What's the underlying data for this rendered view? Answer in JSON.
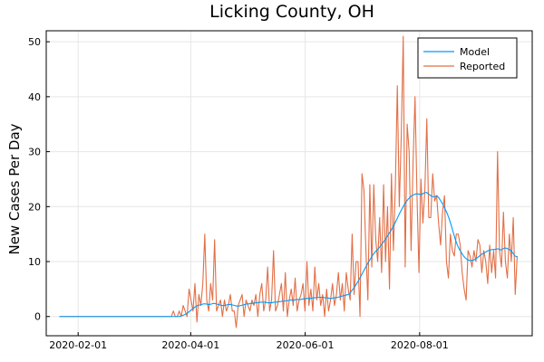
{
  "chart_data": {
    "type": "line",
    "title": "Licking County, OH",
    "xlabel": "",
    "ylabel": "New Cases Per Day",
    "xlim": [
      "2020-01-15",
      "2020-09-30"
    ],
    "ylim": [
      -3.5,
      52
    ],
    "x_ticks": [
      "2020-02-01",
      "2020-04-01",
      "2020-06-01",
      "2020-08-01"
    ],
    "y_ticks": [
      0,
      10,
      20,
      30,
      40,
      50
    ],
    "grid": true,
    "legend": "top-right",
    "x_start": "2020-01-22",
    "x_end": "2020-09-22",
    "colors": {
      "Model": "#009af9",
      "Reported": "#e26f46"
    },
    "series": [
      {
        "name": "Model",
        "values": [
          0,
          0,
          0,
          0,
          0,
          0,
          0,
          0,
          0,
          0,
          0,
          0,
          0,
          0,
          0,
          0,
          0,
          0,
          0,
          0,
          0,
          0,
          0,
          0,
          0,
          0,
          0,
          0,
          0,
          0,
          0,
          0,
          0,
          0,
          0,
          0,
          0,
          0,
          0,
          0,
          0,
          0,
          0,
          0,
          0,
          0,
          0,
          0,
          0,
          0,
          0,
          0,
          0,
          0,
          0,
          0,
          0,
          0,
          0,
          0.1,
          0.2,
          0.4,
          0.6,
          0.9,
          1.2,
          1.5,
          1.8,
          2.0,
          2.1,
          2.2,
          2.3,
          2.3,
          2.2,
          2.2,
          2.3,
          2.4,
          2.3,
          2.2,
          2.1,
          2.0,
          2.0,
          2.1,
          2.2,
          2.2,
          2.1,
          2.0,
          1.9,
          1.9,
          2.0,
          2.1,
          2.2,
          2.3,
          2.3,
          2.4,
          2.4,
          2.5,
          2.5,
          2.6,
          2.6,
          2.6,
          2.6,
          2.5,
          2.5,
          2.5,
          2.6,
          2.6,
          2.7,
          2.7,
          2.8,
          2.8,
          2.9,
          2.9,
          3.0,
          3.0,
          3.0,
          3.1,
          3.1,
          3.1,
          3.2,
          3.2,
          3.3,
          3.3,
          3.3,
          3.4,
          3.4,
          3.5,
          3.5,
          3.5,
          3.5,
          3.4,
          3.4,
          3.3,
          3.3,
          3.4,
          3.4,
          3.5,
          3.6,
          3.7,
          3.8,
          3.9,
          4.0,
          4.3,
          4.8,
          5.3,
          5.9,
          6.5,
          7.2,
          7.9,
          8.6,
          9.3,
          10.0,
          10.6,
          11.2,
          11.7,
          12.1,
          12.5,
          13.0,
          13.5,
          14.0,
          14.6,
          15.2,
          15.8,
          16.5,
          17.2,
          18.0,
          18.8,
          19.5,
          20.2,
          20.8,
          21.3,
          21.7,
          22.0,
          22.2,
          22.3,
          22.3,
          22.2,
          22.3,
          22.5,
          22.6,
          22.3,
          22.0,
          21.8,
          21.8,
          22.0,
          21.6,
          21.0,
          20.4,
          19.6,
          18.8,
          17.8,
          16.6,
          15.3,
          14.0,
          13.0,
          12.2,
          11.6,
          11.0,
          10.6,
          10.3,
          10.2,
          10.2,
          10.3,
          10.5,
          10.8,
          11.1,
          11.4,
          11.6,
          11.8,
          12.0,
          12.1,
          12.2,
          12.2,
          12.3,
          12.3,
          12.1,
          12.3,
          12.5,
          12.4,
          12.2,
          12.0,
          11.5,
          11.0,
          10.8
        ]
      },
      {
        "name": "Reported",
        "values": [
          0,
          0,
          0,
          0,
          0,
          0,
          0,
          0,
          0,
          0,
          0,
          0,
          0,
          0,
          0,
          0,
          0,
          0,
          0,
          0,
          0,
          0,
          0,
          0,
          0,
          0,
          0,
          0,
          0,
          0,
          0,
          0,
          0,
          0,
          0,
          0,
          0,
          0,
          0,
          0,
          0,
          0,
          0,
          0,
          0,
          0,
          0,
          0,
          0,
          0,
          0,
          0,
          0,
          0,
          0,
          0,
          0,
          0,
          1,
          0,
          0,
          1,
          0,
          2,
          1,
          0,
          5,
          3,
          1,
          6,
          -1,
          4,
          2,
          6,
          15,
          3,
          1,
          6,
          3,
          14,
          1,
          2,
          3,
          0,
          3,
          1,
          2,
          4,
          1,
          1,
          -2,
          2,
          3,
          4,
          0,
          3,
          2,
          1,
          3,
          2,
          4,
          0,
          4,
          6,
          1,
          3,
          9,
          1,
          3,
          12,
          1,
          2,
          4,
          6,
          1,
          8,
          0,
          3,
          5,
          2,
          7,
          1,
          3,
          4,
          6,
          1,
          10,
          2,
          5,
          1,
          9,
          3,
          6,
          2,
          4,
          0,
          5,
          1,
          3,
          6,
          2,
          4,
          8,
          3,
          6,
          1,
          8,
          5,
          3,
          15,
          4,
          10,
          10,
          0,
          26,
          23,
          12,
          3,
          24,
          9,
          24,
          14,
          10,
          18,
          8,
          24,
          10,
          20,
          5,
          26,
          12,
          24,
          42,
          20,
          33,
          51,
          9,
          35,
          30,
          12,
          28,
          40,
          22,
          8,
          25,
          17,
          23,
          36,
          18,
          18,
          26,
          21,
          22,
          17,
          13,
          19,
          22,
          10,
          7,
          15,
          12,
          11,
          15,
          15,
          13,
          8,
          5,
          3,
          12,
          11,
          9,
          12,
          10,
          14,
          13,
          8,
          12,
          10,
          6,
          13,
          8,
          12,
          7,
          30,
          12,
          9,
          19,
          10,
          7,
          15,
          10,
          18,
          4,
          11
        ]
      }
    ]
  }
}
